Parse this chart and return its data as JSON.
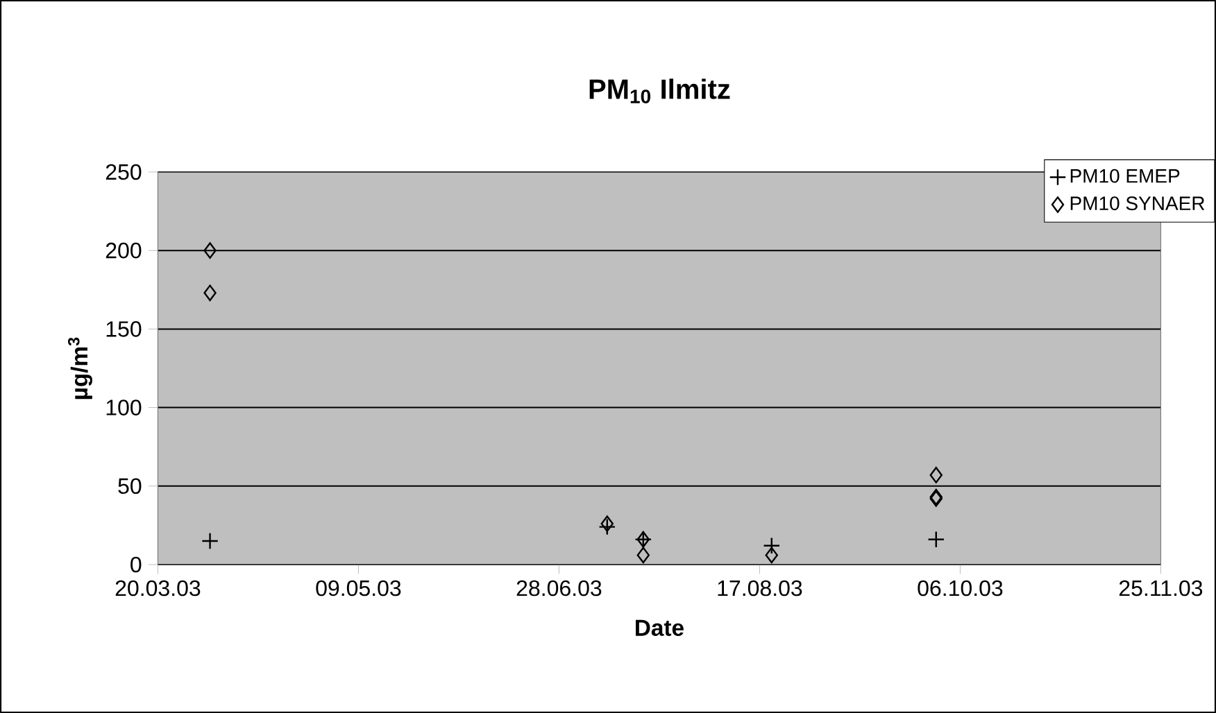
{
  "chart_data": {
    "type": "scatter",
    "title": "PM$_{10}$ Ilmitz",
    "xlabel": "Date",
    "ylabel": "µg/m$^{3}$",
    "xlim": [
      "2003-03-20",
      "2003-11-25"
    ],
    "xticks": [
      {
        "value": "2003-03-20",
        "label": "20.03.03"
      },
      {
        "value": "2003-05-09",
        "label": "09.05.03"
      },
      {
        "value": "2003-06-28",
        "label": "28.06.03"
      },
      {
        "value": "2003-08-17",
        "label": "17.08.03"
      },
      {
        "value": "2003-10-06",
        "label": "06.10.03"
      },
      {
        "value": "2003-11-25",
        "label": "25.11.03"
      }
    ],
    "ylim": [
      0,
      250
    ],
    "yticks": [
      0,
      50,
      100,
      150,
      200,
      250
    ],
    "grid": "y",
    "legend": "top right",
    "series": [
      {
        "name": "PM10 EMEP",
        "color": "#000000",
        "marker": "cross",
        "x": [
          "2003-04-02",
          "2003-07-10",
          "2003-07-19",
          "2003-08-20",
          "2003-09-30"
        ],
        "values": [
          15,
          24,
          16,
          12,
          16
        ]
      },
      {
        "name": "PM10 SYNAER",
        "color": "#000000",
        "marker": "diamond",
        "x": [
          "2003-04-02",
          "2003-04-02",
          "2003-07-10",
          "2003-07-19",
          "2003-07-19",
          "2003-08-20",
          "2003-09-30",
          "2003-09-30",
          "2003-09-30"
        ],
        "values": [
          200,
          173,
          26,
          16,
          6,
          6,
          57,
          43,
          42
        ]
      }
    ]
  }
}
